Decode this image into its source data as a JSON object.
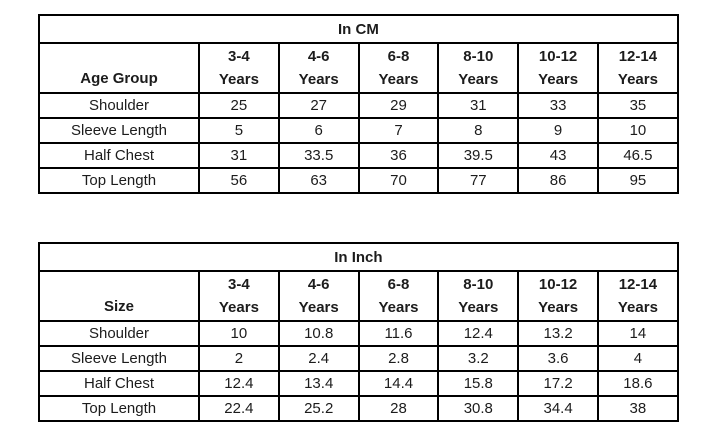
{
  "page": {
    "background_color": "#ffffff",
    "border_color": "#000000",
    "text_color": "#1c1c1c"
  },
  "chart_data": [
    {
      "type": "table",
      "title": "In CM",
      "corner_label": "Age Group",
      "columns": [
        {
          "range": "3-4",
          "unit": "Years"
        },
        {
          "range": "4-6",
          "unit": "Years"
        },
        {
          "range": "6-8",
          "unit": "Years"
        },
        {
          "range": "8-10",
          "unit": "Years"
        },
        {
          "range": "10-12",
          "unit": "Years"
        },
        {
          "range": "12-14",
          "unit": "Years"
        }
      ],
      "rows": [
        {
          "label": "Shoulder",
          "values": [
            "25",
            "27",
            "29",
            "31",
            "33",
            "35"
          ]
        },
        {
          "label": "Sleeve Length",
          "values": [
            "5",
            "6",
            "7",
            "8",
            "9",
            "10"
          ]
        },
        {
          "label": "Half Chest",
          "values": [
            "31",
            "33.5",
            "36",
            "39.5",
            "43",
            "46.5"
          ]
        },
        {
          "label": "Top Length",
          "values": [
            "56",
            "63",
            "70",
            "77",
            "86",
            "95"
          ]
        }
      ]
    },
    {
      "type": "table",
      "title": "In Inch",
      "corner_label": "Size",
      "columns": [
        {
          "range": "3-4",
          "unit": "Years"
        },
        {
          "range": "4-6",
          "unit": "Years"
        },
        {
          "range": "6-8",
          "unit": "Years"
        },
        {
          "range": "8-10",
          "unit": "Years"
        },
        {
          "range": "10-12",
          "unit": "Years"
        },
        {
          "range": "12-14",
          "unit": "Years"
        }
      ],
      "rows": [
        {
          "label": "Shoulder",
          "values": [
            "10",
            "10.8",
            "11.6",
            "12.4",
            "13.2",
            "14"
          ]
        },
        {
          "label": "Sleeve Length",
          "values": [
            "2",
            "2.4",
            "2.8",
            "3.2",
            "3.6",
            "4"
          ]
        },
        {
          "label": "Half Chest",
          "values": [
            "12.4",
            "13.4",
            "14.4",
            "15.8",
            "17.2",
            "18.6"
          ]
        },
        {
          "label": "Top Length",
          "values": [
            "22.4",
            "25.2",
            "28",
            "30.8",
            "34.4",
            "38"
          ]
        }
      ]
    }
  ]
}
